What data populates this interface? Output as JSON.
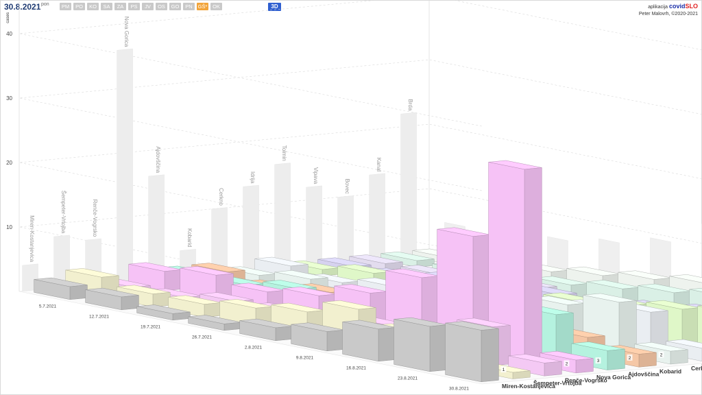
{
  "header": {
    "date": "30.8.2021",
    "weekday": "pon",
    "regions": [
      "PM",
      "PO",
      "KO",
      "SA",
      "ZA",
      "PS",
      "JV",
      "OS",
      "GO",
      "PN",
      "GŠ*",
      "OK"
    ],
    "active_region": "GŠ*",
    "view_button": "3D"
  },
  "brand": {
    "prefix": "aplikacija",
    "name_part1": "covid",
    "name_part2": "SLO",
    "credit": "Peter Malovrh, ©2020-2021"
  },
  "colors": {
    "active_region": "#f2a43a",
    "view_button": "#2f5fd0"
  },
  "chart_data": {
    "type": "bar",
    "view": "3d",
    "ylabel": "cases",
    "yticks": [
      10,
      20,
      30,
      40
    ],
    "ylim": [
      0,
      45
    ],
    "grid": true,
    "x": [
      "5.7.2021",
      "12.7.2021",
      "19.7.2021",
      "26.7.2021",
      "2.8.2021",
      "9.8.2021",
      "16.8.2021",
      "23.8.2021",
      "30.8.2021"
    ],
    "series": [
      {
        "name": "Miren-Kostanjevica",
        "color": "#c9c9c9",
        "values": [
          2,
          2,
          1,
          1,
          2,
          3,
          5,
          7,
          8
        ],
        "wall_total": 4
      },
      {
        "name": "Šempeter-Vrtojba",
        "color": "#f2f0cf",
        "values": [
          3,
          2,
          2,
          3,
          4,
          6,
          4,
          5,
          1
        ],
        "wall_total": 8
      },
      {
        "name": "Renče-Vogrsko",
        "color": "#f4c9f4",
        "values": [
          1,
          1,
          2,
          2,
          2,
          3,
          4,
          6,
          2
        ],
        "wall_total": 7
      },
      {
        "name": "Nova Gorica",
        "color": "#f6c2f6",
        "values": [
          3,
          4,
          3,
          4,
          6,
          10,
          18,
          30,
          2
        ],
        "wall_total": 36
      },
      {
        "name": "Ajdovščina",
        "color": "#b5f2df",
        "values": [
          2,
          2,
          3,
          2,
          3,
          4,
          5,
          7,
          3
        ],
        "wall_total": 16
      },
      {
        "name": "Kobarid",
        "color": "#f5c7a6",
        "values": [
          2,
          1,
          2,
          1,
          2,
          1,
          2,
          3,
          2
        ],
        "wall_total": 4
      },
      {
        "name": "Cerkno",
        "color": "#e8f2ee",
        "values": [
          1,
          2,
          1,
          2,
          2,
          3,
          6,
          8,
          2
        ],
        "wall_total": 10
      },
      {
        "name": "Idrija",
        "color": "#eaeef2",
        "values": [
          2,
          1,
          2,
          3,
          3,
          4,
          5,
          6,
          2
        ],
        "wall_total": 13
      },
      {
        "name": "Tolmin",
        "color": "#dff7c8",
        "values": [
          1,
          2,
          2,
          3,
          2,
          4,
          5,
          6,
          7
        ],
        "wall_total": 16
      },
      {
        "name": "Vipava",
        "color": "#d6d2ef",
        "values": [
          1,
          1,
          2,
          2,
          3,
          3,
          4,
          5,
          4
        ],
        "wall_total": 12
      },
      {
        "name": "Bovec",
        "color": "#e3dcef",
        "values": [
          1,
          1,
          1,
          2,
          1,
          2,
          3,
          4,
          1
        ],
        "wall_total": 10
      },
      {
        "name": "Kanal",
        "color": "#daf0e6",
        "values": [
          1,
          1,
          2,
          2,
          3,
          4,
          5,
          6,
          4
        ],
        "wall_total": 13
      },
      {
        "name": "Brda",
        "color": "#eef3ee",
        "values": [
          1,
          2,
          2,
          3,
          4,
          5,
          6,
          7,
          3
        ],
        "wall_total": 22
      }
    ],
    "last_value_labels": [
      {
        "series": "Šempeter-Vrtojba",
        "text": "1"
      },
      {
        "series": "Nova Gorica",
        "text": "2"
      },
      {
        "series": "Ajdovščina",
        "text": "3"
      },
      {
        "series": "Kobarid",
        "text": "2"
      },
      {
        "series": "Cerkno",
        "text": "2"
      },
      {
        "series": "Tolmin",
        "text": "7"
      },
      {
        "series": "Bovec",
        "text": "1"
      }
    ]
  }
}
